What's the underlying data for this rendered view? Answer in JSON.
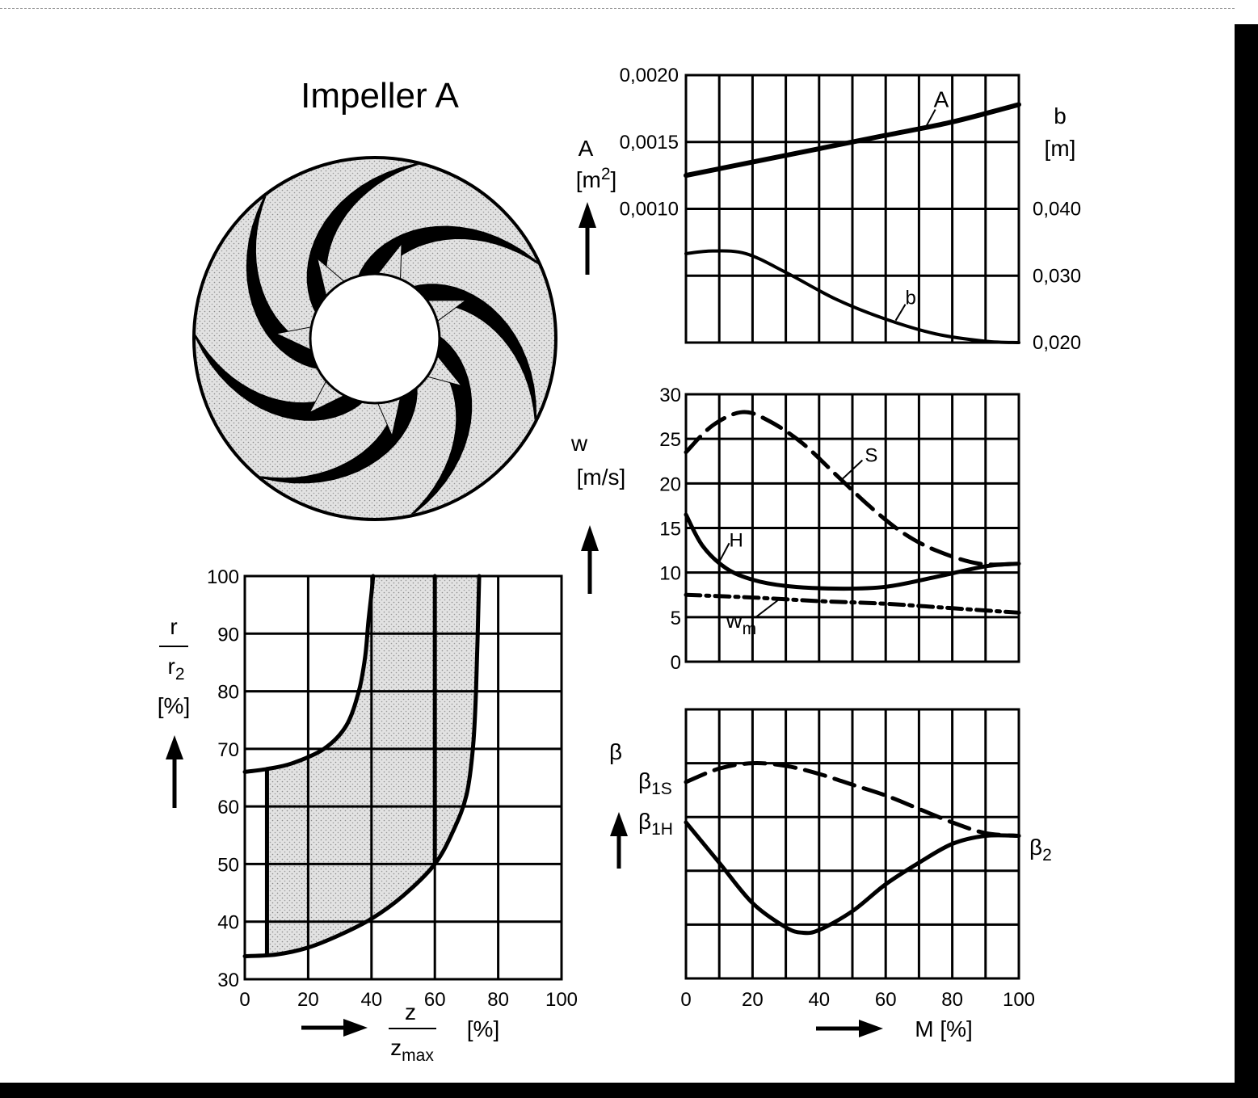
{
  "title": "Impeller A",
  "chart_data": [
    {
      "id": "meridional",
      "type": "line",
      "xlabel": {
        "num": "z",
        "den": "z",
        "den_sub": "max",
        "unit": "[%]"
      },
      "ylabel": {
        "num": "r",
        "den": "r",
        "den_sub": "2",
        "unit": "[%]"
      },
      "xlim": [
        0,
        100
      ],
      "ylim": [
        30,
        100
      ],
      "xticks": [
        "0",
        "20",
        "40",
        "60",
        "80",
        "100"
      ],
      "yticks": [
        "30",
        "40",
        "50",
        "60",
        "70",
        "80",
        "90",
        "100"
      ],
      "series": [
        {
          "key": "inner",
          "x": [
            0,
            7,
            15,
            25,
            32,
            36,
            38,
            39,
            40,
            40.5
          ],
          "y": [
            66,
            66.5,
            67.5,
            70,
            74,
            80,
            86,
            92,
            97,
            100
          ]
        },
        {
          "key": "outer",
          "x": [
            0,
            10,
            20,
            30,
            40,
            50,
            60,
            66,
            70,
            72,
            73,
            74
          ],
          "y": [
            34,
            34.3,
            35.5,
            37.7,
            40.5,
            44.5,
            50,
            56,
            62,
            70,
            80,
            100
          ]
        },
        {
          "key": "leading-edge",
          "x": [
            7,
            7
          ],
          "y": [
            66.5,
            34.3
          ]
        },
        {
          "key": "trailing-edge",
          "x": [
            60,
            60
          ],
          "y": [
            100,
            50
          ]
        }
      ]
    },
    {
      "id": "area-width",
      "type": "line",
      "xlim": [
        0,
        100
      ],
      "left_axis": {
        "label": "A",
        "unit": "[m²]",
        "unit_base": "[m",
        "unit_sup": "2",
        "unit_end": "]",
        "ticks": [
          "0,0020",
          "0,0015",
          "0,0010"
        ],
        "tick_values": [
          0.002,
          0.0015,
          0.001
        ],
        "lim": [
          0.0,
          0.002
        ]
      },
      "right_axis": {
        "label": "b",
        "unit": "[m]",
        "ticks": [
          "0,040",
          "0,030",
          "0,020"
        ],
        "tick_values": [
          0.04,
          0.03,
          0.02
        ],
        "lim": [
          0.02,
          0.06
        ]
      },
      "series": [
        {
          "name": "A",
          "axis": "left",
          "x": [
            0,
            20,
            40,
            60,
            80,
            100
          ],
          "y": [
            0.00125,
            0.00135,
            0.00145,
            0.00155,
            0.00165,
            0.00178
          ]
        },
        {
          "name": "b",
          "axis": "right",
          "x": [
            0,
            8,
            18,
            30,
            45,
            60,
            75,
            90,
            100
          ],
          "y": [
            0.0333,
            0.0337,
            0.0333,
            0.0305,
            0.0265,
            0.0235,
            0.0213,
            0.0202,
            0.02
          ]
        }
      ]
    },
    {
      "id": "velocity",
      "type": "line",
      "ylabel": {
        "label": "w",
        "unit": "[m/s]"
      },
      "xlim": [
        0,
        100
      ],
      "ylim": [
        0,
        30
      ],
      "yticks": [
        "0",
        "5",
        "10",
        "15",
        "20",
        "25",
        "30"
      ],
      "series": [
        {
          "name": "S",
          "style": "dashed",
          "x": [
            0,
            8,
            17,
            25,
            35,
            45,
            55,
            65,
            75,
            88,
            100
          ],
          "y": [
            23.5,
            26.5,
            28,
            27,
            24.5,
            21,
            17.5,
            14.5,
            12.5,
            11,
            11
          ]
        },
        {
          "name": "H",
          "style": "solid",
          "x": [
            0,
            5,
            12,
            20,
            30,
            45,
            60,
            75,
            90,
            100
          ],
          "y": [
            16.5,
            13,
            10.5,
            9.2,
            8.5,
            8.2,
            8.4,
            9.5,
            10.7,
            11
          ]
        },
        {
          "name": "w",
          "name_sub": "m",
          "style": "dashdot",
          "x": [
            0,
            20,
            40,
            60,
            80,
            100
          ],
          "y": [
            7.5,
            7.2,
            6.8,
            6.5,
            6.0,
            5.5
          ]
        }
      ]
    },
    {
      "id": "angle",
      "type": "line",
      "ylabel": {
        "label": "β"
      },
      "xlabel": "M [%]",
      "xlim": [
        0,
        100
      ],
      "ylim": [
        0,
        10
      ],
      "xticks": [
        "0",
        "20",
        "40",
        "60",
        "80",
        "100"
      ],
      "series": [
        {
          "name": "β1S",
          "label": "β",
          "label_sub": "1S",
          "style": "dashed",
          "x": [
            0,
            10,
            20,
            30,
            40,
            50,
            60,
            70,
            80,
            90,
            100
          ],
          "y": [
            7.3,
            7.8,
            8.0,
            7.9,
            7.6,
            7.2,
            6.8,
            6.3,
            5.8,
            5.4,
            5.3
          ]
        },
        {
          "name": "β1H",
          "label": "β",
          "label_sub": "1H",
          "style": "solid",
          "x": [
            0,
            10,
            20,
            30,
            35,
            40,
            50,
            60,
            70,
            80,
            90,
            100
          ],
          "y": [
            5.8,
            4.3,
            2.8,
            1.9,
            1.7,
            1.8,
            2.5,
            3.5,
            4.3,
            5.0,
            5.3,
            5.3
          ]
        }
      ],
      "end_label": {
        "label": "β",
        "label_sub": "2"
      }
    }
  ]
}
